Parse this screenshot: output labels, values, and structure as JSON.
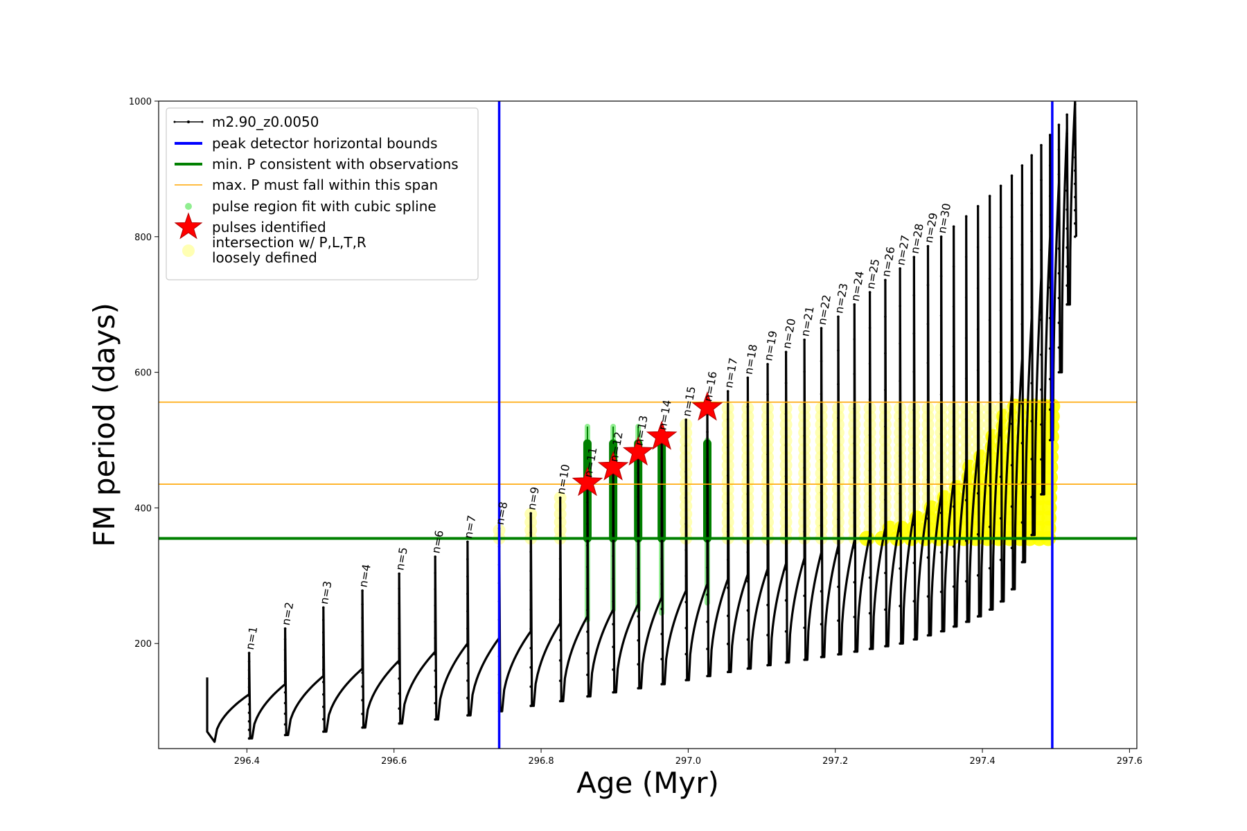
{
  "chart_data": {
    "type": "line",
    "xlabel": "Age (Myr)",
    "ylabel": "FM period (days)",
    "xlim": [
      296.28,
      297.61
    ],
    "ylim": [
      45,
      1000
    ],
    "x_ticks": [
      "296.4",
      "296.6",
      "296.8",
      "297.0",
      "297.2",
      "297.4",
      "297.6"
    ],
    "y_ticks": [
      "200",
      "400",
      "600",
      "800",
      "1000"
    ],
    "grid": false,
    "legend_position": "top-left",
    "legend": [
      {
        "label": "m2.90_z0.0050",
        "kind": "line-marker",
        "color": "#000000"
      },
      {
        "label": "peak detector horizontal bounds",
        "kind": "line",
        "color": "#0000ff"
      },
      {
        "label": "min. P consistent with observations",
        "kind": "line",
        "color": "#008000"
      },
      {
        "label": "max. P must fall within this span",
        "kind": "thin-line",
        "color": "#ffa500"
      },
      {
        "label": "pulse region fit with cubic spline",
        "kind": "dot",
        "color": "#90ee90"
      },
      {
        "label": "pulses identified",
        "kind": "star",
        "color": "#ff0000"
      },
      {
        "label": "intersection w/ P,L,T,R\nloosely defined",
        "kind": "circle",
        "color": "#ffff99"
      }
    ],
    "series": [
      {
        "name": "m2.90_z0.0050",
        "color": "#000000",
        "pulse_ages": [
          296.403,
          296.452,
          296.504,
          296.557,
          296.607,
          296.656,
          296.7,
          296.743,
          296.786,
          296.826,
          296.863,
          296.898,
          296.932,
          296.964,
          296.997,
          297.026,
          297.054,
          297.081,
          297.108,
          297.133,
          297.158,
          297.181,
          297.204,
          297.226,
          297.247,
          297.268,
          297.288,
          297.307,
          297.326,
          297.344,
          297.361,
          297.378,
          297.394,
          297.41,
          297.425,
          297.44,
          297.454,
          297.467,
          297.48,
          297.492,
          297.504,
          297.515,
          297.526
        ],
        "pulse_peaks": [
          186,
          222,
          253,
          278,
          303,
          328,
          350,
          370,
          392,
          415,
          440,
          463,
          487,
          510,
          530,
          552,
          572,
          592,
          612,
          630,
          648,
          665,
          682,
          700,
          718,
          736,
          753,
          770,
          786,
          800,
          815,
          830,
          845,
          860,
          875,
          890,
          905,
          920,
          935,
          950,
          965,
          980,
          995
        ],
        "pulse_minima": [
          60,
          65,
          70,
          76,
          82,
          88,
          94,
          100,
          108,
          115,
          122,
          128,
          134,
          140,
          146,
          152,
          158,
          163,
          168,
          172,
          176,
          180,
          184,
          188,
          192,
          196,
          200,
          206,
          212,
          218,
          225,
          232,
          240,
          250,
          262,
          280,
          320,
          360,
          420,
          500,
          600,
          700,
          800
        ],
        "pulse_plateaus": [
          125,
          140,
          152,
          163,
          175,
          188,
          200,
          208,
          218,
          230,
          240,
          250,
          258,
          268,
          278,
          288,
          295,
          302,
          310,
          318,
          326,
          334,
          344,
          352,
          360,
          370,
          380,
          392,
          405,
          420,
          440,
          460,
          485,
          510,
          540,
          570,
          620,
          680,
          740,
          800,
          880,
          960,
          1000
        ]
      }
    ],
    "horizontal_lines": {
      "min_P": 355,
      "max_P_span": [
        435,
        556
      ]
    },
    "vertical_lines": [
      296.743,
      297.495
    ],
    "pulses_identified": [
      {
        "n": "n=11",
        "x": 296.863,
        "y": 437
      },
      {
        "n": "n=12",
        "x": 296.898,
        "y": 460
      },
      {
        "n": "n=13",
        "x": 296.932,
        "y": 482
      },
      {
        "n": "n=14",
        "x": 296.964,
        "y": 505
      },
      {
        "n": "n=16",
        "x": 297.026,
        "y": 548
      }
    ],
    "spline_columns": [
      {
        "x": 296.863,
        "y_low": 235,
        "y_high": 520
      },
      {
        "x": 296.898,
        "y_low": 250,
        "y_high": 520
      },
      {
        "x": 296.932,
        "y_low": 250,
        "y_high": 520
      },
      {
        "x": 296.964,
        "y_low": 245,
        "y_high": 510
      },
      {
        "x": 297.026,
        "y_low": 260,
        "y_high": 500
      }
    ],
    "pulse_labels": [
      "n=1",
      "n=2",
      "n=3",
      "n=4",
      "n=5",
      "n=6",
      "n=7",
      "n=8",
      "n=9",
      "n=10",
      "n=11",
      "n=12",
      "n=13",
      "n=14",
      "n=15",
      "n=16",
      "n=17",
      "n=18",
      "n=19",
      "n=20",
      "n=21",
      "n=22",
      "n=23",
      "n=24",
      "n=25",
      "n=26",
      "n=27",
      "n=28",
      "n=29",
      "n=30"
    ]
  }
}
